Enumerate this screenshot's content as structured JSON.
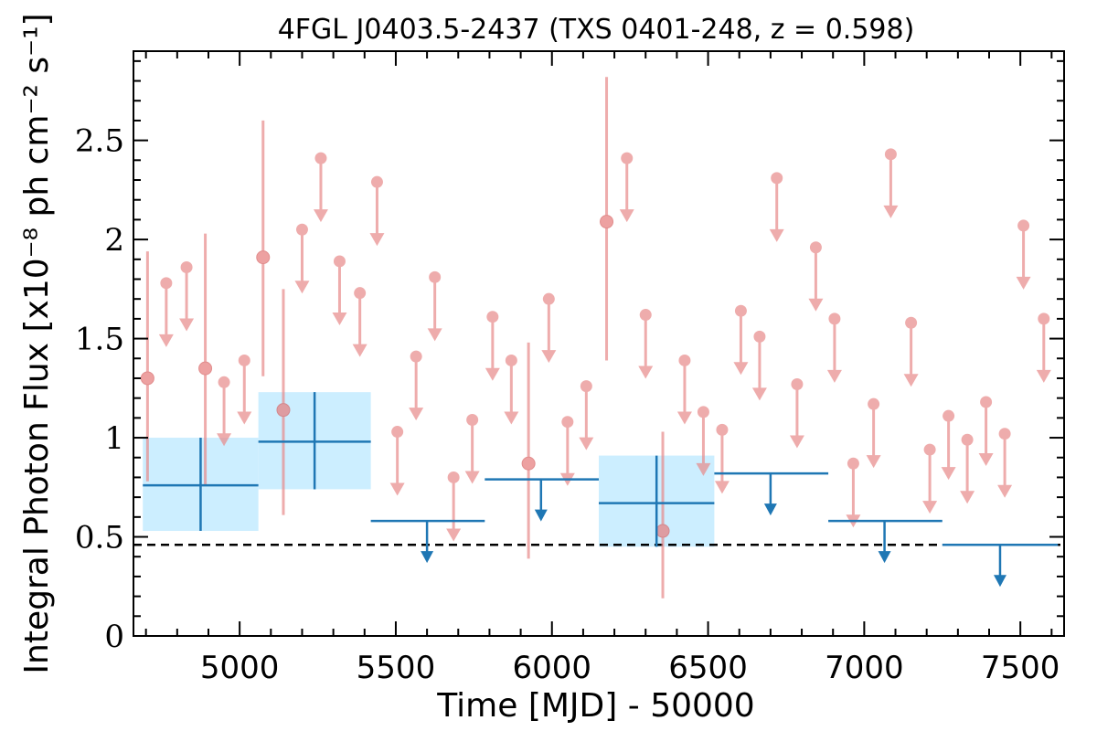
{
  "chart_data": {
    "type": "scatter",
    "title": "4FGL J0403.5-2437 (TXS 0401-248, z = 0.598)",
    "xlabel": "Time [MJD] - 50000",
    "ylabel": "Integral Photon Flux [x10⁻⁸ ph cm⁻² s⁻¹]",
    "xlim": [
      4660,
      7640
    ],
    "ylim": [
      0,
      2.95
    ],
    "xticks": [
      5000,
      5500,
      6000,
      6500,
      7000,
      7500
    ],
    "yticks": [
      0,
      0.5,
      1,
      1.5,
      2,
      2.5
    ],
    "xtick_labels": [
      "5000",
      "5500",
      "6000",
      "6500",
      "7000",
      "7500"
    ],
    "ytick_labels": [
      "0",
      "0.5",
      "1",
      "1.5",
      "2",
      "2.5"
    ],
    "reference_line": 0.46,
    "series": [
      {
        "description": "short bins detections",
        "color": "#e88a8a",
        "points": [
          {
            "x": 4705,
            "y": 1.3,
            "ylo": 0.78,
            "yhi": 1.94
          },
          {
            "x": 4890,
            "y": 1.35,
            "ylo": 0.76,
            "yhi": 2.03
          },
          {
            "x": 5075,
            "y": 1.91,
            "ylo": 1.31,
            "yhi": 2.6
          },
          {
            "x": 5140,
            "y": 1.14,
            "ylo": 0.61,
            "yhi": 1.75
          },
          {
            "x": 5925,
            "y": 0.87,
            "ylo": 0.39,
            "yhi": 1.48
          },
          {
            "x": 6175,
            "y": 2.09,
            "ylo": 1.39,
            "yhi": 2.82
          },
          {
            "x": 6355,
            "y": 0.53,
            "ylo": 0.19,
            "yhi": 1.03
          }
        ]
      },
      {
        "description": "short bins upper limits",
        "color": "#e88a8a",
        "points": [
          {
            "x": 4765,
            "y": 1.78
          },
          {
            "x": 4830,
            "y": 1.86
          },
          {
            "x": 4950,
            "y": 1.28
          },
          {
            "x": 5015,
            "y": 1.39
          },
          {
            "x": 5200,
            "y": 2.05
          },
          {
            "x": 5260,
            "y": 2.41
          },
          {
            "x": 5320,
            "y": 1.89
          },
          {
            "x": 5385,
            "y": 1.73
          },
          {
            "x": 5440,
            "y": 2.29
          },
          {
            "x": 5505,
            "y": 1.03
          },
          {
            "x": 5565,
            "y": 1.41
          },
          {
            "x": 5625,
            "y": 1.81
          },
          {
            "x": 5685,
            "y": 0.8
          },
          {
            "x": 5745,
            "y": 1.09
          },
          {
            "x": 5810,
            "y": 1.61
          },
          {
            "x": 5870,
            "y": 1.39
          },
          {
            "x": 5990,
            "y": 1.7
          },
          {
            "x": 6050,
            "y": 1.08
          },
          {
            "x": 6110,
            "y": 1.26
          },
          {
            "x": 6240,
            "y": 2.41
          },
          {
            "x": 6300,
            "y": 1.62
          },
          {
            "x": 6425,
            "y": 1.39
          },
          {
            "x": 6485,
            "y": 1.13
          },
          {
            "x": 6545,
            "y": 1.04
          },
          {
            "x": 6605,
            "y": 1.64
          },
          {
            "x": 6665,
            "y": 1.51
          },
          {
            "x": 6720,
            "y": 2.31
          },
          {
            "x": 6785,
            "y": 1.27
          },
          {
            "x": 6845,
            "y": 1.96
          },
          {
            "x": 6905,
            "y": 1.6
          },
          {
            "x": 6965,
            "y": 0.87
          },
          {
            "x": 7030,
            "y": 1.17
          },
          {
            "x": 7085,
            "y": 2.43
          },
          {
            "x": 7150,
            "y": 1.58
          },
          {
            "x": 7210,
            "y": 0.94
          },
          {
            "x": 7270,
            "y": 1.11
          },
          {
            "x": 7330,
            "y": 0.99
          },
          {
            "x": 7390,
            "y": 1.18
          },
          {
            "x": 7450,
            "y": 1.02
          },
          {
            "x": 7510,
            "y": 2.07
          },
          {
            "x": 7575,
            "y": 1.6
          }
        ]
      },
      {
        "description": "long bins detections",
        "color": "#1f77b4",
        "fill": "#cceeff",
        "points": [
          {
            "x": 4875,
            "xlo": 4690,
            "xhi": 5060,
            "y": 0.76,
            "ylo": 0.53,
            "yhi": 1.0
          },
          {
            "x": 5240,
            "xlo": 5060,
            "xhi": 5420,
            "y": 0.98,
            "ylo": 0.74,
            "yhi": 1.23
          },
          {
            "x": 6335,
            "xlo": 6150,
            "xhi": 6520,
            "y": 0.67,
            "ylo": 0.45,
            "yhi": 0.91
          }
        ]
      },
      {
        "description": "long bins upper limits",
        "color": "#1f77b4",
        "points": [
          {
            "x": 5600,
            "xlo": 5420,
            "xhi": 5785,
            "y": 0.58
          },
          {
            "x": 5965,
            "xlo": 5785,
            "xhi": 6150,
            "y": 0.79
          },
          {
            "x": 6700,
            "xlo": 6520,
            "xhi": 6885,
            "y": 0.82
          },
          {
            "x": 7065,
            "xlo": 6885,
            "xhi": 7250,
            "y": 0.58
          },
          {
            "x": 7435,
            "xlo": 7250,
            "xhi": 7620,
            "y": 0.46
          }
        ]
      }
    ]
  }
}
